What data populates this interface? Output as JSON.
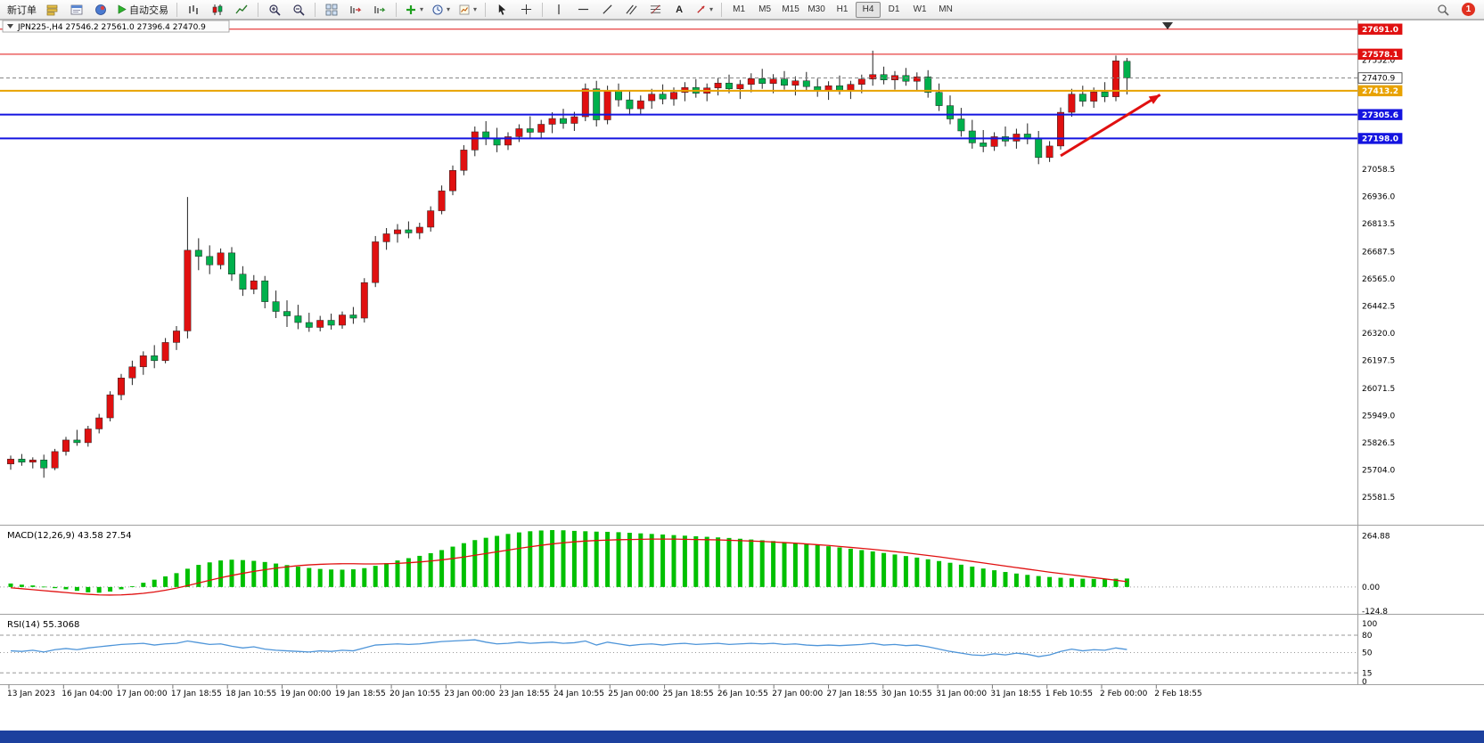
{
  "colors": {
    "bull": "#e01010",
    "bear": "#00b04c",
    "wick": "#222222",
    "macd_hist": "#00c000",
    "macd_signal": "#e01010",
    "rsi_line": "#4e95d9",
    "hline_red": "#e01010",
    "hline_orange": "#e8a200",
    "hline_blue": "#1414e0",
    "arrow": "#e01010",
    "axis_text": "#000000",
    "badge_text": "#ffffff"
  },
  "toolbar": {
    "new_order": "新订单",
    "autotrading": "自动交易",
    "text_tool": "A",
    "timeframes": [
      "M1",
      "M5",
      "M15",
      "M30",
      "H1",
      "H4",
      "D1",
      "W1",
      "MN"
    ],
    "active_timeframe": "H4",
    "notification_count": "1"
  },
  "chart_data": [
    {
      "type": "candlestick",
      "symbol": "JPN225-",
      "timeframe": "H4",
      "title": "JPN225-,H4  27546.2 27561.0 27396.4 27470.9",
      "ohlc_last": {
        "open": 27546.2,
        "high": 27561.0,
        "low": 27396.4,
        "close": 27470.9
      },
      "ylim": [
        25460,
        27710
      ],
      "y_labels": [
        "27552.0",
        "27058.5",
        "26936.0",
        "26813.5",
        "26687.5",
        "26565.0",
        "26442.5",
        "26320.0",
        "26197.5",
        "26071.5",
        "25949.0",
        "25826.5",
        "25704.0",
        "25581.5"
      ],
      "x_labels": [
        "13 Jan 2023",
        "16 Jan 04:00",
        "17 Jan 00:00",
        "17 Jan 18:55",
        "18 Jan 10:55",
        "19 Jan 00:00",
        "19 Jan 18:55",
        "20 Jan 10:55",
        "23 Jan 00:00",
        "23 Jan 18:55",
        "24 Jan 10:55",
        "25 Jan 00:00",
        "25 Jan 18:55",
        "26 Jan 10:55",
        "27 Jan 00:00",
        "27 Jan 18:55",
        "30 Jan 10:55",
        "31 Jan 00:00",
        "31 Jan 18:55",
        "1 Feb 10:55",
        "2 Feb 00:00",
        "2 Feb 18:55"
      ],
      "hlines": [
        {
          "price": 27691.0,
          "label": "27691.0",
          "color": "#e01010",
          "width": 1,
          "style": "solid"
        },
        {
          "price": 27578.1,
          "label": "27578.1",
          "color": "#e01010",
          "width": 1,
          "style": "solid"
        },
        {
          "price": 27470.9,
          "label": "27470.9",
          "color": "#888888",
          "width": 1,
          "style": "current"
        },
        {
          "price": 27413.2,
          "label": "27413.2",
          "color": "#e8a200",
          "width": 2,
          "style": "solid"
        },
        {
          "price": 27305.6,
          "label": "27305.6",
          "color": "#1414e0",
          "width": 2,
          "style": "solid"
        },
        {
          "price": 27198.0,
          "label": "27198.0",
          "color": "#1414e0",
          "width": 2,
          "style": "solid"
        }
      ],
      "arrow": {
        "from_index": 95,
        "from_price": 27120,
        "to_index": 104,
        "to_price": 27395
      },
      "candles": [
        [
          25730,
          25768,
          25704,
          25752
        ],
        [
          25752,
          25775,
          25722,
          25738
        ],
        [
          25738,
          25760,
          25710,
          25748
        ],
        [
          25748,
          25772,
          25668,
          25712
        ],
        [
          25712,
          25798,
          25702,
          25786
        ],
        [
          25786,
          25852,
          25768,
          25838
        ],
        [
          25838,
          25884,
          25812,
          25826
        ],
        [
          25826,
          25902,
          25808,
          25888
        ],
        [
          25888,
          25956,
          25868,
          25938
        ],
        [
          25938,
          26058,
          25922,
          26042
        ],
        [
          26042,
          26136,
          26018,
          26118
        ],
        [
          26118,
          26196,
          26086,
          26168
        ],
        [
          26168,
          26238,
          26132,
          26218
        ],
        [
          26218,
          26266,
          26162,
          26196
        ],
        [
          26196,
          26298,
          26184,
          26278
        ],
        [
          26278,
          26352,
          26244,
          26330
        ],
        [
          26330,
          26934,
          26296,
          26694
        ],
        [
          26694,
          26748,
          26604,
          26666
        ],
        [
          26666,
          26716,
          26586,
          26628
        ],
        [
          26628,
          26702,
          26608,
          26682
        ],
        [
          26682,
          26708,
          26556,
          26586
        ],
        [
          26586,
          26622,
          26488,
          26518
        ],
        [
          26518,
          26582,
          26496,
          26556
        ],
        [
          26556,
          26578,
          26432,
          26462
        ],
        [
          26462,
          26512,
          26388,
          26418
        ],
        [
          26418,
          26468,
          26348,
          26398
        ],
        [
          26398,
          26448,
          26338,
          26368
        ],
        [
          26368,
          26412,
          26326,
          26346
        ],
        [
          26346,
          26398,
          26328,
          26378
        ],
        [
          26378,
          26408,
          26336,
          26356
        ],
        [
          26356,
          26418,
          26340,
          26402
        ],
        [
          26402,
          26438,
          26362,
          26388
        ],
        [
          26388,
          26568,
          26368,
          26548
        ],
        [
          26548,
          26758,
          26528,
          26732
        ],
        [
          26732,
          26794,
          26696,
          26768
        ],
        [
          26768,
          26812,
          26728,
          26786
        ],
        [
          26786,
          26824,
          26748,
          26772
        ],
        [
          26772,
          26818,
          26744,
          26798
        ],
        [
          26798,
          26892,
          26778,
          26872
        ],
        [
          26872,
          26986,
          26856,
          26962
        ],
        [
          26962,
          27076,
          26942,
          27054
        ],
        [
          27054,
          27168,
          27032,
          27146
        ],
        [
          27146,
          27252,
          27118,
          27228
        ],
        [
          27228,
          27276,
          27168,
          27198
        ],
        [
          27198,
          27246,
          27136,
          27168
        ],
        [
          27168,
          27226,
          27146,
          27206
        ],
        [
          27206,
          27262,
          27182,
          27242
        ],
        [
          27242,
          27298,
          27202,
          27226
        ],
        [
          27226,
          27282,
          27196,
          27262
        ],
        [
          27262,
          27316,
          27222,
          27288
        ],
        [
          27288,
          27332,
          27242,
          27266
        ],
        [
          27266,
          27318,
          27232,
          27296
        ],
        [
          27296,
          27446,
          27276,
          27422
        ],
        [
          27422,
          27458,
          27252,
          27282
        ],
        [
          27282,
          27436,
          27262,
          27412
        ],
        [
          27412,
          27446,
          27342,
          27372
        ],
        [
          27372,
          27416,
          27302,
          27332
        ],
        [
          27332,
          27392,
          27306,
          27368
        ],
        [
          27368,
          27422,
          27332,
          27398
        ],
        [
          27398,
          27442,
          27352,
          27376
        ],
        [
          27376,
          27428,
          27346,
          27406
        ],
        [
          27406,
          27452,
          27366,
          27428
        ],
        [
          27428,
          27466,
          27382,
          27402
        ],
        [
          27402,
          27446,
          27366,
          27426
        ],
        [
          27426,
          27472,
          27392,
          27448
        ],
        [
          27448,
          27486,
          27402,
          27422
        ],
        [
          27422,
          27462,
          27376,
          27442
        ],
        [
          27442,
          27492,
          27406,
          27468
        ],
        [
          27468,
          27512,
          27422,
          27446
        ],
        [
          27446,
          27488,
          27402,
          27466
        ],
        [
          27466,
          27502,
          27418,
          27438
        ],
        [
          27438,
          27478,
          27392,
          27458
        ],
        [
          27458,
          27498,
          27412,
          27432
        ],
        [
          27432,
          27468,
          27386,
          27412
        ],
        [
          27412,
          27456,
          27372,
          27436
        ],
        [
          27436,
          27482,
          27396,
          27416
        ],
        [
          27416,
          27458,
          27376,
          27442
        ],
        [
          27442,
          27486,
          27402,
          27466
        ],
        [
          27466,
          27594,
          27436,
          27486
        ],
        [
          27486,
          27522,
          27442,
          27462
        ],
        [
          27462,
          27502,
          27418,
          27482
        ],
        [
          27482,
          27516,
          27436,
          27456
        ],
        [
          27456,
          27496,
          27412,
          27476
        ],
        [
          27476,
          27506,
          27382,
          27406
        ],
        [
          27406,
          27446,
          27322,
          27346
        ],
        [
          27346,
          27392,
          27262,
          27286
        ],
        [
          27286,
          27336,
          27206,
          27232
        ],
        [
          27232,
          27282,
          27152,
          27178
        ],
        [
          27178,
          27236,
          27136,
          27162
        ],
        [
          27162,
          27226,
          27142,
          27206
        ],
        [
          27206,
          27252,
          27162,
          27186
        ],
        [
          27186,
          27242,
          27152,
          27218
        ],
        [
          27218,
          27266,
          27172,
          27196
        ],
        [
          27196,
          27232,
          27082,
          27112
        ],
        [
          27112,
          27186,
          27092,
          27164
        ],
        [
          27164,
          27338,
          27148,
          27316
        ],
        [
          27316,
          27422,
          27296,
          27398
        ],
        [
          27398,
          27436,
          27342,
          27366
        ],
        [
          27366,
          27428,
          27336,
          27408
        ],
        [
          27408,
          27452,
          27362,
          27386
        ],
        [
          27386,
          27572,
          27366,
          27548
        ],
        [
          27546.2,
          27561.0,
          27396.4,
          27470.9
        ]
      ]
    },
    {
      "type": "bar+line",
      "label": "MACD(12,26,9) 43.58 27.54",
      "last_values": {
        "macd": 43.58,
        "signal": 27.54
      },
      "ylim": [
        -135,
        310
      ],
      "scale_labels": [
        "264.88",
        "0.00",
        "-124.8"
      ],
      "histogram": [
        18,
        12,
        8,
        2,
        -6,
        -12,
        -20,
        -28,
        -30,
        -24,
        -12,
        4,
        22,
        38,
        55,
        72,
        95,
        115,
        128,
        138,
        142,
        140,
        136,
        130,
        122,
        114,
        106,
        99,
        94,
        91,
        90,
        92,
        98,
        110,
        124,
        138,
        150,
        162,
        176,
        192,
        210,
        228,
        244,
        256,
        266,
        276,
        284,
        290,
        294,
        296,
        295,
        292,
        290,
        288,
        287,
        285,
        282,
        279,
        276,
        273,
        270,
        267,
        264,
        261,
        258,
        255,
        251,
        247,
        243,
        239,
        234,
        229,
        224,
        218,
        212,
        206,
        199,
        192,
        185,
        177,
        169,
        161,
        153,
        144,
        135,
        126,
        116,
        106,
        96,
        87,
        78,
        70,
        63,
        57,
        52,
        48,
        45,
        43,
        42,
        42,
        43,
        44
      ],
      "signal": [
        -4,
        -9,
        -14,
        -19,
        -24,
        -29,
        -34,
        -38,
        -41,
        -42,
        -41,
        -38,
        -33,
        -26,
        -17,
        -6,
        7,
        21,
        35,
        48,
        60,
        71,
        81,
        90,
        98,
        105,
        111,
        115,
        118,
        120,
        121,
        121,
        120,
        120,
        121,
        123,
        126,
        130,
        135,
        141,
        148,
        156,
        165,
        174,
        183,
        192,
        201,
        209,
        217,
        224,
        230,
        235,
        239,
        242,
        244,
        246,
        247,
        248,
        249,
        249,
        249,
        248,
        247,
        246,
        245,
        243,
        241,
        239,
        237,
        234,
        231,
        228,
        224,
        220,
        216,
        211,
        206,
        201,
        196,
        190,
        184,
        178,
        171,
        164,
        157,
        149,
        141,
        133,
        125,
        117,
        109,
        101,
        93,
        85,
        77,
        70,
        63,
        56,
        49,
        42,
        35,
        28
      ]
    },
    {
      "type": "line",
      "label": "RSI(14) 55.3068",
      "last_value": 55.3068,
      "ylim": [
        0,
        100
      ],
      "scale_labels": [
        "100",
        "80",
        "50",
        "15",
        "0"
      ],
      "levels": [
        80,
        50,
        15
      ],
      "values": [
        53,
        52,
        54,
        51,
        55,
        57,
        55,
        58,
        60,
        62,
        64,
        65,
        66,
        63,
        65,
        66,
        70,
        67,
        64,
        65,
        61,
        58,
        60,
        56,
        54,
        53,
        52,
        51,
        53,
        52,
        54,
        53,
        58,
        63,
        64,
        65,
        64,
        65,
        67,
        69,
        70,
        71,
        72,
        68,
        65,
        66,
        68,
        66,
        67,
        68,
        66,
        67,
        70,
        63,
        68,
        65,
        62,
        64,
        65,
        63,
        65,
        66,
        64,
        65,
        66,
        64,
        65,
        66,
        65,
        66,
        64,
        65,
        63,
        62,
        63,
        62,
        63,
        64,
        66,
        63,
        64,
        62,
        63,
        60,
        56,
        52,
        49,
        46,
        45,
        48,
        46,
        49,
        47,
        43,
        46,
        52,
        56,
        53,
        55,
        54,
        58,
        55.31
      ]
    }
  ]
}
